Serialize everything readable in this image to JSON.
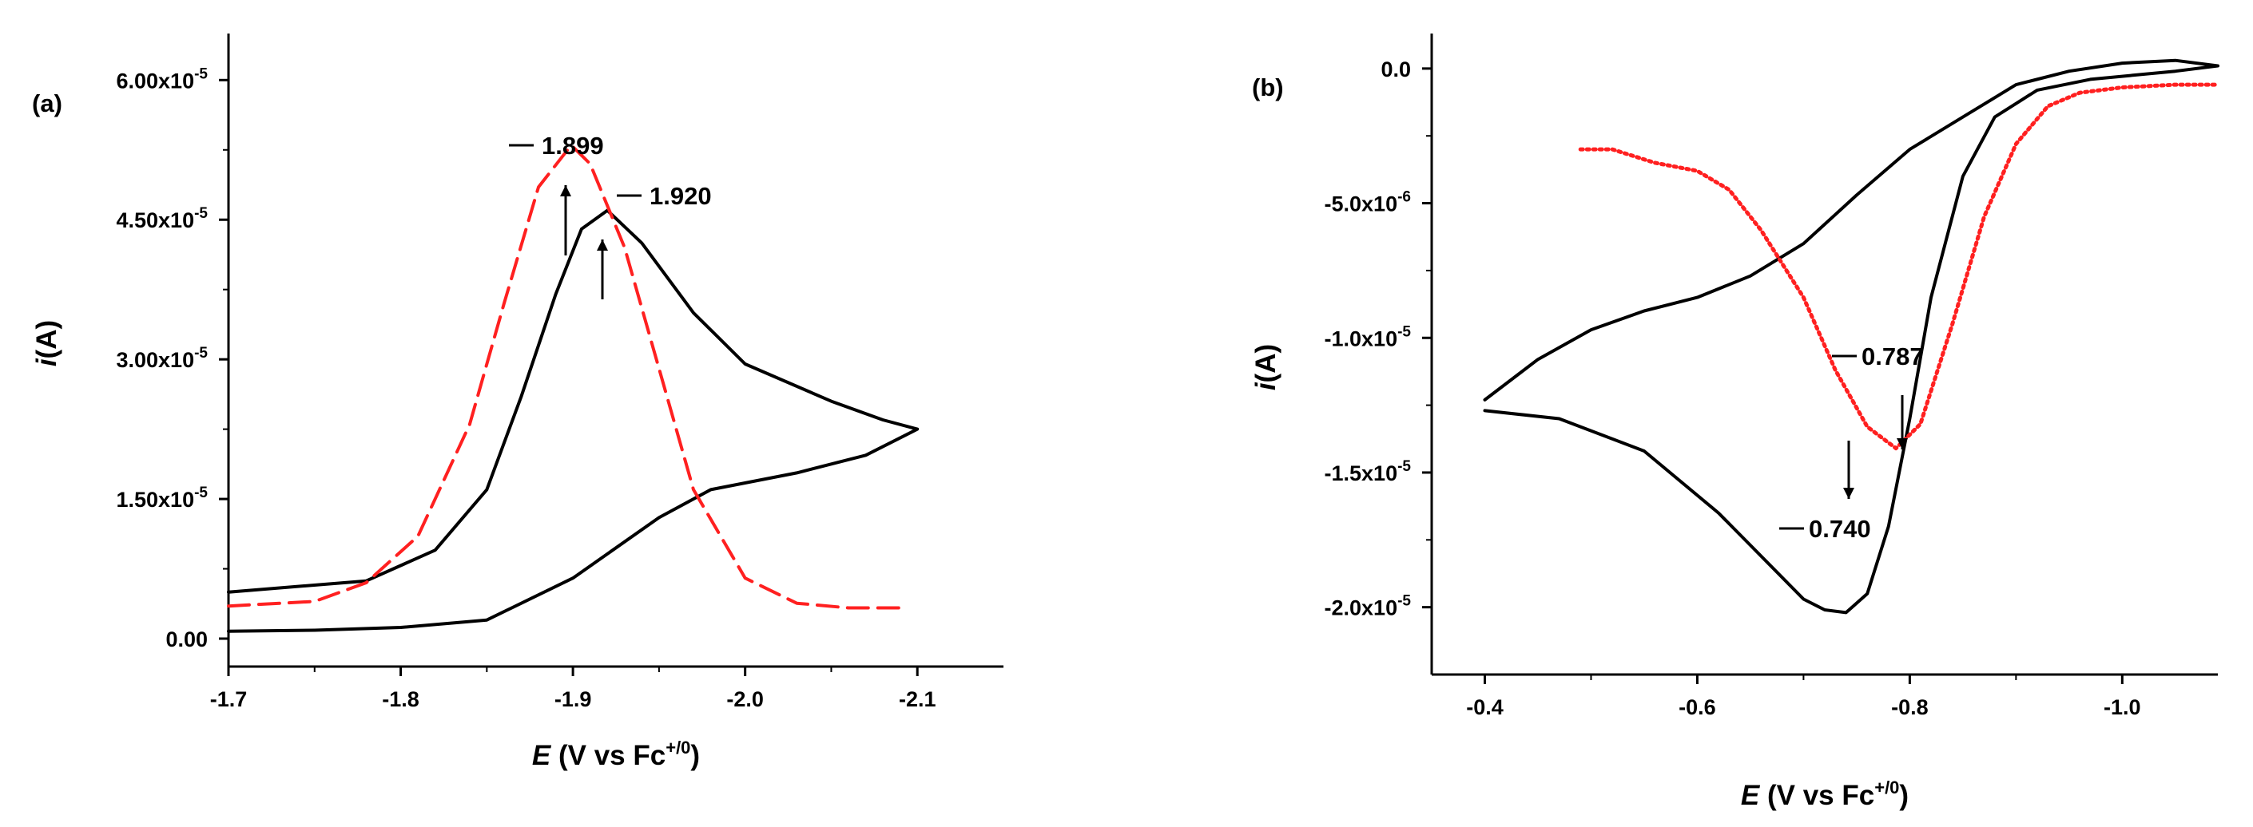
{
  "chart_data": [
    {
      "type": "line",
      "panel_label": "(a)",
      "xlabel": {
        "italic": "E",
        "text": " (V vs Fc",
        "sup": "+/0",
        "close": ")"
      },
      "ylabel": {
        "italic": "i",
        "text": "(A)"
      },
      "xlim": [
        -1.7,
        -2.15
      ],
      "ylim": [
        -3e-06,
        6.5e-05
      ],
      "x_ticks": [
        -1.7,
        -1.8,
        -1.9,
        -2.0,
        -2.1
      ],
      "x_tick_labels": [
        "-1.7",
        "-1.8",
        "-1.9",
        "-2.0",
        "-2.1"
      ],
      "y_ticks": [
        0,
        1.5e-05,
        3e-05,
        4.5e-05,
        6e-05
      ],
      "y_tick_labels": [
        {
          "base": "0.00",
          "exp": ""
        },
        {
          "base": "1.50x10",
          "exp": "-5"
        },
        {
          "base": "3.00x10",
          "exp": "-5"
        },
        {
          "base": "4.50x10",
          "exp": "-5"
        },
        {
          "base": "6.00x10",
          "exp": "-5"
        }
      ],
      "series": [
        {
          "color": "#000000",
          "style": "solid",
          "x": [
            -1.7,
            -1.78,
            -1.82,
            -1.85,
            -1.87,
            -1.89,
            -1.905,
            -1.92,
            -1.94,
            -1.97,
            -2.0,
            -2.05,
            -2.08,
            -2.1,
            -2.07,
            -2.03,
            -1.98,
            -1.95,
            -1.9,
            -1.85,
            -1.8,
            -1.75,
            -1.7
          ],
          "y": [
            5e-06,
            6.2e-06,
            9.5e-06,
            1.6e-05,
            2.6e-05,
            3.7e-05,
            4.4e-05,
            4.6e-05,
            4.25e-05,
            3.5e-05,
            2.95e-05,
            2.55e-05,
            2.35e-05,
            2.25e-05,
            1.97e-05,
            1.78e-05,
            1.6e-05,
            1.3e-05,
            6.5e-06,
            2e-06,
            1.2e-06,
            9e-07,
            8e-07
          ]
        },
        {
          "color": "#ff2020",
          "style": "dashed",
          "x": [
            -1.7,
            -1.75,
            -1.78,
            -1.81,
            -1.84,
            -1.86,
            -1.88,
            -1.899,
            -1.91,
            -1.93,
            -1.95,
            -1.97,
            -2.0,
            -2.03,
            -2.06,
            -2.09
          ],
          "y": [
            3.5e-06,
            4e-06,
            6e-06,
            1.1e-05,
            2.3e-05,
            3.6e-05,
            4.85e-05,
            5.3e-05,
            5.1e-05,
            4.2e-05,
            2.9e-05,
            1.6e-05,
            6.5e-06,
            3.8e-06,
            3.3e-06,
            3.3e-06
          ]
        }
      ],
      "annotations": [
        {
          "text": "1.899",
          "x": -1.899,
          "y": 5.3e-05
        },
        {
          "text": "1.920",
          "x": -1.92,
          "y": 4.6e-05
        }
      ]
    },
    {
      "type": "line",
      "panel_label": "(b)",
      "xlabel": {
        "italic": "E",
        "text": " (V vs Fc",
        "sup": "+/0",
        "close": ")"
      },
      "ylabel": {
        "italic": "i",
        "text": "(A)"
      },
      "xlim": [
        -0.35,
        -1.09
      ],
      "ylim": [
        -2.25e-05,
        1.3e-06
      ],
      "x_ticks": [
        -0.4,
        -0.6,
        -0.8,
        -1.0
      ],
      "x_tick_labels": [
        "-0.4",
        "-0.6",
        "-0.8",
        "-1.0"
      ],
      "y_ticks": [
        0,
        -5e-06,
        -1e-05,
        -1.5e-05,
        -2e-05
      ],
      "y_tick_labels": [
        {
          "base": "0.0",
          "exp": ""
        },
        {
          "base": "-5.0x10",
          "exp": "-6"
        },
        {
          "base": "-1.0x10",
          "exp": "-5"
        },
        {
          "base": "-1.5x10",
          "exp": "-5"
        },
        {
          "base": "-2.0x10",
          "exp": "-5"
        }
      ],
      "series": [
        {
          "color": "#000000",
          "style": "solid",
          "x": [
            -0.4,
            -0.47,
            -0.55,
            -0.62,
            -0.67,
            -0.7,
            -0.72,
            -0.74,
            -0.76,
            -0.78,
            -0.8,
            -0.82,
            -0.85,
            -0.88,
            -0.92,
            -0.97,
            -1.05,
            -1.09,
            -1.05,
            -1.0,
            -0.95,
            -0.9,
            -0.85,
            -0.8,
            -0.75,
            -0.7,
            -0.65,
            -0.6,
            -0.55,
            -0.5,
            -0.45,
            -0.4
          ],
          "y": [
            -1.27e-05,
            -1.3e-05,
            -1.42e-05,
            -1.65e-05,
            -1.85e-05,
            -1.97e-05,
            -2.01e-05,
            -2.02e-05,
            -1.95e-05,
            -1.7e-05,
            -1.3e-05,
            -8.5e-06,
            -4e-06,
            -1.8e-06,
            -8e-07,
            -4e-07,
            -1e-07,
            1e-07,
            3e-07,
            2e-07,
            -1e-07,
            -6e-07,
            -1.8e-06,
            -3e-06,
            -4.7e-06,
            -6.5e-06,
            -7.7e-06,
            -8.5e-06,
            -9e-06,
            -9.7e-06,
            -1.08e-05,
            -1.23e-05
          ]
        },
        {
          "color": "#ff2020",
          "style": "dotted",
          "x": [
            -0.49,
            -0.52,
            -0.56,
            -0.6,
            -0.63,
            -0.66,
            -0.7,
            -0.73,
            -0.76,
            -0.787,
            -0.81,
            -0.84,
            -0.87,
            -0.9,
            -0.93,
            -0.96,
            -1.0,
            -1.05,
            -1.09
          ],
          "y": [
            -3e-06,
            -3e-06,
            -3.5e-06,
            -3.8e-06,
            -4.5e-06,
            -6e-06,
            -8.5e-06,
            -1.12e-05,
            -1.33e-05,
            -1.41e-05,
            -1.32e-05,
            -9.5e-06,
            -5.5e-06,
            -2.8e-06,
            -1.4e-06,
            -9e-07,
            -7e-07,
            -6e-07,
            -6e-07
          ]
        }
      ],
      "annotations": [
        {
          "text": "0.787",
          "x": -0.787,
          "y": -1.41e-05
        },
        {
          "text": "0.740",
          "x": -0.74,
          "y": -2.02e-05
        }
      ]
    }
  ]
}
